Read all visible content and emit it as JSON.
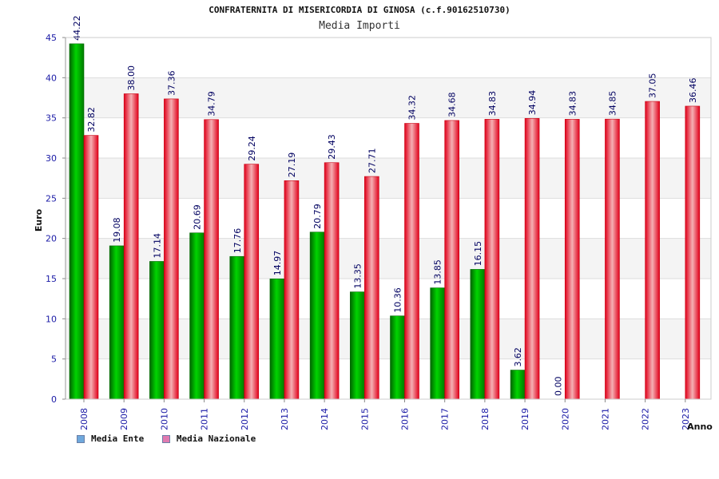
{
  "chart_data": {
    "type": "bar",
    "title": "CONFRATERNITA DI MISERICORDIA DI GINOSA (c.f.90162510730)",
    "subtitle": "Media Importi",
    "xlabel": "Anno",
    "ylabel": "Euro",
    "ylim": [
      0,
      45
    ],
    "yticks": [
      0,
      5,
      10,
      15,
      20,
      25,
      30,
      35,
      40,
      45
    ],
    "grid": true,
    "legend_position": "bottom-left",
    "categories": [
      "2008",
      "2009",
      "2010",
      "2011",
      "2012",
      "2013",
      "2014",
      "2015",
      "2016",
      "2017",
      "2018",
      "2019",
      "2020",
      "2021",
      "2022",
      "2023"
    ],
    "series": [
      {
        "name": "Media Ente",
        "color": "#00b300",
        "legend_color": "#6fa8dc",
        "values": [
          44.22,
          19.08,
          17.14,
          20.69,
          17.76,
          14.97,
          20.79,
          13.35,
          10.36,
          13.85,
          16.15,
          3.62,
          0.0,
          null,
          null,
          null
        ],
        "labels": [
          "44.22",
          "19.08",
          "17.14",
          "20.69",
          "17.76",
          "14.97",
          "20.79",
          "13.35",
          "10.36",
          "13.85",
          "16.15",
          "3.62",
          "0.00",
          "",
          "",
          ""
        ]
      },
      {
        "name": "Media Nazionale",
        "color": "#e8202a",
        "legend_color": "#e07ab0",
        "values": [
          32.82,
          38.0,
          37.36,
          34.79,
          29.24,
          27.19,
          29.43,
          27.71,
          34.32,
          34.68,
          34.83,
          34.94,
          34.83,
          34.85,
          37.05,
          36.46
        ],
        "labels": [
          "32.82",
          "38.00",
          "37.36",
          "34.79",
          "29.24",
          "27.19",
          "29.43",
          "27.71",
          "34.32",
          "34.68",
          "34.83",
          "34.94",
          "34.83",
          "34.85",
          "37.05",
          "36.46"
        ]
      }
    ]
  }
}
